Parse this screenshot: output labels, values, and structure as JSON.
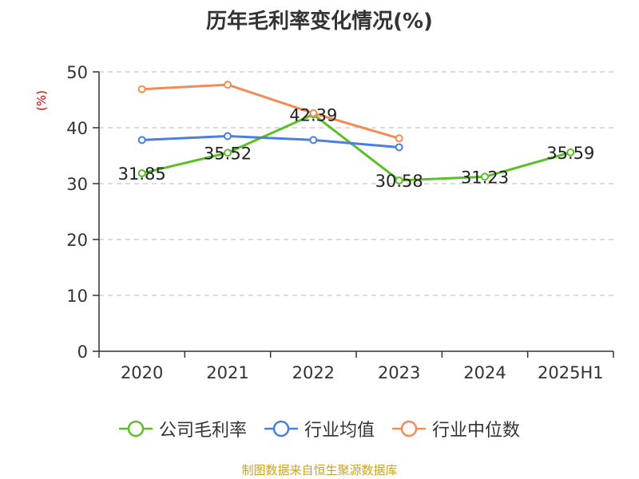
{
  "chart_data": {
    "type": "line",
    "title": "历年毛利率变化情况(%)",
    "ylabel": "(%)",
    "xlabel": "",
    "categories": [
      "2020",
      "2021",
      "2022",
      "2023",
      "2024",
      "2025H1"
    ],
    "ylim": [
      0,
      50
    ],
    "yticks": [
      0,
      10,
      20,
      30,
      40,
      50
    ],
    "grid": true,
    "legend_position": "bottom",
    "series": [
      {
        "name": "公司毛利率",
        "color": "#5cbf2a",
        "values": [
          31.85,
          35.52,
          42.39,
          30.58,
          31.23,
          35.59
        ],
        "show_labels": true
      },
      {
        "name": "行业均值",
        "color": "#4a7fe0",
        "values": [
          37.8,
          38.5,
          37.8,
          36.5,
          null,
          null
        ],
        "show_labels": false
      },
      {
        "name": "行业中位数",
        "color": "#f28b54",
        "values": [
          46.9,
          47.7,
          42.6,
          38.1,
          null,
          null
        ],
        "show_labels": false
      }
    ]
  },
  "footer": {
    "source": "制图数据来自恒生聚源数据库"
  }
}
